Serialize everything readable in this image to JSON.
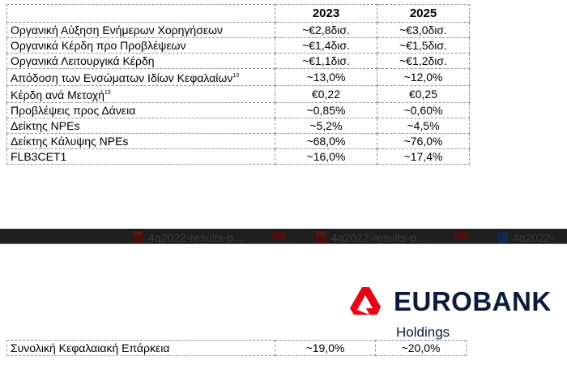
{
  "table": {
    "headers": [
      "",
      "2023",
      "2025"
    ],
    "rows": [
      {
        "label": "Οργανική Αύξηση Ενήμερων Χορηγήσεων",
        "sup": "",
        "y2023": "~€2,8δισ.",
        "y2025": "~€3,0δισ."
      },
      {
        "label": "Οργανικά Κέρδη προ Προβλέψεων",
        "sup": "",
        "y2023": "~€1,4δισ.",
        "y2025": "~€1,5δισ."
      },
      {
        "label": "Οργανικά Λειτουργικά Κέρδη",
        "sup": "",
        "y2023": "~€1,1δισ.",
        "y2025": "~€1,2δισ."
      },
      {
        "label": "Απόδοση των Ενσώματων Ιδίων Κεφαλαίων",
        "sup": "13",
        "y2023": "~13,0%",
        "y2025": "~12,0%"
      },
      {
        "label": "Κέρδη ανά Μετοχή",
        "sup": "13",
        "y2023": "€0,22",
        "y2025": "€0,25"
      },
      {
        "label": "Προβλέψεις προς Δάνεια",
        "sup": "",
        "y2023": "~0,85%",
        "y2025": "~0,60%"
      },
      {
        "label": "Δείκτης NPEs",
        "sup": "",
        "y2023": "~5,2%",
        "y2025": "~4,5%"
      },
      {
        "label": "Δείκτης Κάλυψης NPEs",
        "sup": "",
        "y2023": "~68,0%",
        "y2025": "~76,0%"
      },
      {
        "label": "FLB3CET1",
        "sup": "",
        "y2023": "~16,0%",
        "y2025": "~17,4%"
      }
    ],
    "bottom_row": {
      "label": "Συνολική Κεφαλαιακή Επάρκεια",
      "y2023": "~19,0%",
      "y2025": "~20,0%"
    }
  },
  "taskbar": {
    "items": [
      {
        "icon": "pdf-icon",
        "label": "4q2022-results-p..."
      },
      {
        "icon": "pdf-icon",
        "label": "4q2022-results-p..."
      },
      {
        "icon": "word-icon",
        "label": "4q2022-"
      }
    ]
  },
  "logo": {
    "brand": "EUROBANK",
    "sub": "Holdings",
    "color": "#e30613",
    "text_color": "#0c1b3d"
  }
}
